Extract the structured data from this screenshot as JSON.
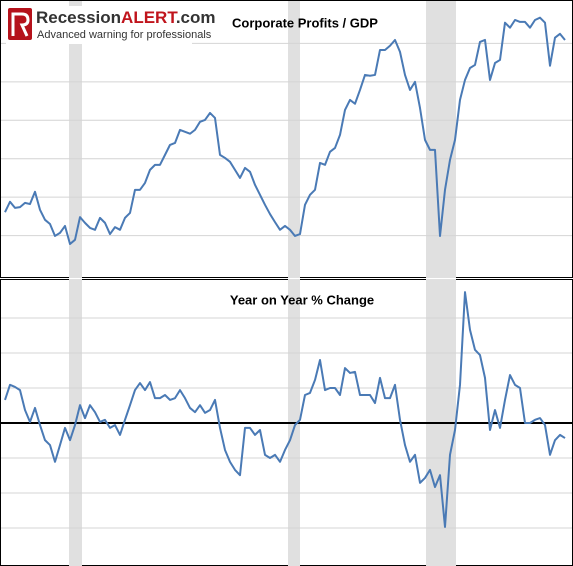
{
  "logo": {
    "parts": [
      "Recession",
      "ALERT",
      ".com"
    ],
    "tagline": "Advanced warning for professionals"
  },
  "chart_data": [
    {
      "type": "line",
      "title": "Corporate Profits / GDP",
      "ylim": [
        0,
        7
      ],
      "yticks": [
        1,
        2,
        3,
        4,
        5,
        6
      ],
      "grid": true,
      "recessions": [
        [
          12.8,
          15.4
        ],
        [
          56.6,
          59
        ],
        [
          84.2,
          90.2
        ]
      ],
      "color": "#4a7ab5",
      "values": [
        1.61,
        1.88,
        1.72,
        1.74,
        1.85,
        1.82,
        2.14,
        1.67,
        1.41,
        1.3,
        0.99,
        1.07,
        1.25,
        0.78,
        0.89,
        1.48,
        1.33,
        1.2,
        1.15,
        1.46,
        1.33,
        1.04,
        1.22,
        1.15,
        1.46,
        1.59,
        2.19,
        2.19,
        2.37,
        2.71,
        2.84,
        2.84,
        3.1,
        3.36,
        3.41,
        3.75,
        3.7,
        3.65,
        3.75,
        3.96,
        4.01,
        4.19,
        4.06,
        3.1,
        3.02,
        2.92,
        2.71,
        2.5,
        2.76,
        2.66,
        2.32,
        2.06,
        1.8,
        1.56,
        1.35,
        1.15,
        1.25,
        1.15,
        0.99,
        1.04,
        1.8,
        2.06,
        2.19,
        2.89,
        2.84,
        3.18,
        3.28,
        3.62,
        4.27,
        4.53,
        4.43,
        4.79,
        5.18,
        5.16,
        5.18,
        5.83,
        5.83,
        5.94,
        6.09,
        5.78,
        5.18,
        4.79,
        5.0,
        4.32,
        3.49,
        3.23,
        3.23,
        0.99,
        2.19,
        2.97,
        3.49,
        4.53,
        5.05,
        5.36,
        5.44,
        6.04,
        6.09,
        5.05,
        5.49,
        5.57,
        6.54,
        6.41,
        6.61,
        6.56,
        6.56,
        6.41,
        6.61,
        6.67,
        6.54,
        5.42,
        6.15,
        6.25,
        6.09
      ]
    },
    {
      "type": "line",
      "title": "Year on Year % Change",
      "ylim": [
        -4,
        4
      ],
      "yticks": [
        -3,
        -2,
        -1,
        1,
        2,
        3
      ],
      "grid": true,
      "reference_line": 0,
      "recessions": [
        [
          12.8,
          15.4
        ],
        [
          56.6,
          59
        ],
        [
          84.2,
          90.2
        ]
      ],
      "color": "#4a7ab5",
      "values": [
        0.66,
        1.09,
        1.03,
        0.94,
        0.37,
        0.03,
        0.43,
        -0.06,
        -0.49,
        -0.63,
        -1.11,
        -0.63,
        -0.14,
        -0.49,
        -0.06,
        0.51,
        0.14,
        0.51,
        0.31,
        0.03,
        0.09,
        -0.14,
        -0.06,
        -0.34,
        0.09,
        0.51,
        0.94,
        1.14,
        0.94,
        1.17,
        0.71,
        0.71,
        0.8,
        0.66,
        0.71,
        0.94,
        0.71,
        0.43,
        0.31,
        0.51,
        0.29,
        0.37,
        0.66,
        -0.14,
        -0.77,
        -1.11,
        -1.34,
        -1.49,
        -0.14,
        -0.14,
        -0.34,
        -0.2,
        -0.91,
        -1.0,
        -0.91,
        -1.11,
        -0.77,
        -0.49,
        -0.06,
        0.09,
        0.8,
        0.86,
        1.23,
        1.8,
        0.94,
        1.0,
        1.0,
        0.8,
        1.57,
        1.43,
        1.46,
        0.8,
        0.8,
        0.8,
        0.57,
        1.29,
        0.71,
        0.71,
        1.09,
        0.09,
        -0.63,
        -1.11,
        -0.91,
        -1.71,
        -1.57,
        -1.34,
        -1.83,
        -1.49,
        -2.97,
        -0.91,
        -0.2,
        1.09,
        3.74,
        2.66,
        2.09,
        1.94,
        1.29,
        -0.2,
        0.37,
        -0.14,
        0.66,
        1.37,
        1.09,
        1.0,
        0.0,
        0.0,
        0.09,
        0.14,
        -0.06,
        -0.91,
        -0.49,
        -0.34,
        -0.43
      ]
    }
  ]
}
